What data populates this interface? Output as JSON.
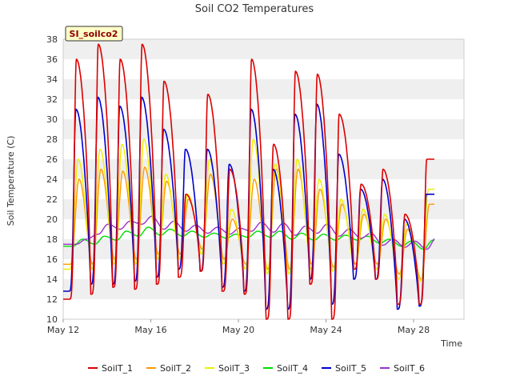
{
  "chart_data": {
    "type": "line",
    "title": "Soil CO2 Temperatures",
    "xlabel": "Time",
    "ylabel": "Soil Temperature (C)",
    "ylim": [
      10,
      38
    ],
    "yticks": [
      10,
      12,
      14,
      16,
      18,
      20,
      22,
      24,
      26,
      28,
      30,
      32,
      34,
      36,
      38
    ],
    "xlim": [
      12,
      30.3
    ],
    "xticks": [
      {
        "day": 12,
        "label": "May 12"
      },
      {
        "day": 16,
        "label": "May 16"
      },
      {
        "day": 20,
        "label": "May 20"
      },
      {
        "day": 24,
        "label": "May 24"
      },
      {
        "day": 28,
        "label": "May 28"
      }
    ],
    "site_label": "SI_soilco2",
    "legend_position": "bottom",
    "grid": "horizontal bands",
    "series": [
      {
        "name": "SoilT_1",
        "color": "#dd0000",
        "peaks": [
          36,
          37.5,
          36,
          37.5,
          33.8,
          22.5,
          32.5,
          25,
          36,
          27.5,
          34.8,
          34.5,
          30.5,
          23.5,
          25,
          20.5,
          26
        ],
        "mins": [
          12.0,
          12.5,
          13.2,
          13.0,
          13.5,
          14.2,
          14.8,
          12.8,
          12.5,
          10.0,
          10.0,
          13.5,
          10.0,
          15.0,
          14.0,
          11.5,
          11.5
        ]
      },
      {
        "name": "SoilT_2",
        "color": "#ff9900",
        "peaks": [
          24,
          25,
          24.8,
          25.2,
          23.8,
          22,
          24.5,
          20,
          24,
          25,
          25,
          23,
          21.5,
          20.5,
          20,
          19,
          21.5
        ],
        "mins": [
          15.5,
          15.5,
          16.0,
          16.0,
          16.5,
          16.5,
          17.0,
          16.0,
          15.5,
          15.0,
          15.0,
          15.5,
          15.2,
          15.5,
          15.5,
          14.5,
          14.0
        ]
      },
      {
        "name": "SoilT_3",
        "color": "#eeee00",
        "peaks": [
          26,
          27,
          27.5,
          28,
          24.5,
          22.5,
          26,
          21,
          28,
          25.5,
          26,
          24,
          22,
          21,
          20.5,
          19.5,
          23
        ],
        "mins": [
          15.0,
          15.0,
          15.5,
          15.5,
          16.0,
          16.0,
          16.5,
          15.5,
          15.0,
          14.5,
          14.5,
          15.0,
          14.8,
          15.0,
          15.0,
          14.0,
          13.8
        ]
      },
      {
        "name": "SoilT_4",
        "color": "#00dd00",
        "peaks": [
          18.0,
          18.3,
          18.8,
          19.2,
          19.0,
          18.8,
          18.6,
          18.5,
          18.8,
          18.8,
          18.6,
          18.5,
          18.4,
          18.3,
          18.0,
          17.8,
          17.9
        ],
        "mins": [
          17.3,
          17.5,
          17.9,
          18.3,
          18.4,
          18.3,
          18.2,
          18.1,
          18.2,
          18.2,
          18.0,
          17.9,
          17.9,
          17.9,
          17.6,
          17.3,
          17.0
        ]
      },
      {
        "name": "SoilT_5",
        "color": "#0000cc",
        "peaks": [
          31,
          32.2,
          31.3,
          32.2,
          29,
          27,
          27,
          25.5,
          31,
          25,
          30.5,
          31.5,
          26.5,
          23,
          24,
          20,
          22.5
        ],
        "mins": [
          12.8,
          13.5,
          13.5,
          13.8,
          14.2,
          15.0,
          14.8,
          13.2,
          12.8,
          11.0,
          11.0,
          14.0,
          11.5,
          14.0,
          14.0,
          11.0,
          11.3
        ]
      },
      {
        "name": "SoilT_6",
        "color": "#9933cc",
        "peaks": [
          18.0,
          19.5,
          19.8,
          20.3,
          19.8,
          19.4,
          19.2,
          19.1,
          19.7,
          19.6,
          19.3,
          19.5,
          19.0,
          18.6,
          18.0,
          17.8,
          18.2
        ],
        "mins": [
          17.5,
          18.5,
          19.0,
          19.5,
          19.0,
          18.8,
          18.6,
          18.5,
          18.8,
          18.7,
          18.4,
          18.6,
          18.3,
          18.1,
          17.4,
          17.2,
          17.0
        ]
      }
    ]
  }
}
